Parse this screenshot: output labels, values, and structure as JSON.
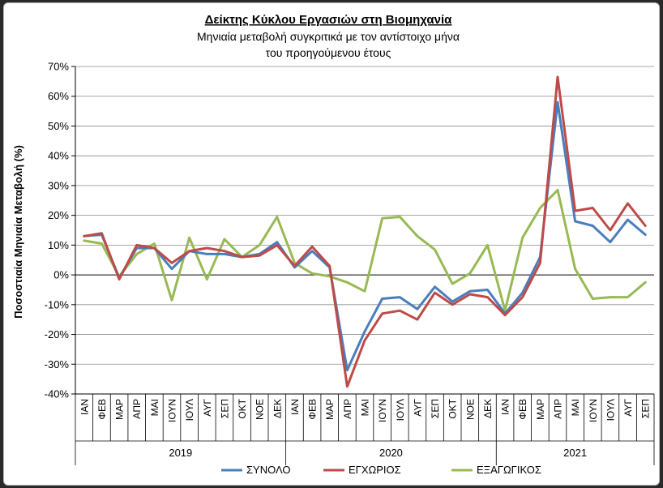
{
  "chart_data": {
    "type": "line",
    "title": "Δείκτης Κύκλου Εργασιών στη Βιομηχανία",
    "subtitle_line1": "Μηνιαία μεταβολή συγκριτικά με τον αντίστοιχο μήνα",
    "subtitle_line2": "του προηγούμενου έτους",
    "ylabel": "Ποσοστιαία Μηνιαία Μεταβολή (%)",
    "ylim": [
      -40,
      70
    ],
    "yticks": [
      "70%",
      "60%",
      "50%",
      "40%",
      "30%",
      "20%",
      "10%",
      "0%",
      "-10%",
      "-20%",
      "-30%",
      "-40%"
    ],
    "ytick_values": [
      70,
      60,
      50,
      40,
      30,
      20,
      10,
      0,
      -10,
      -20,
      -30,
      -40
    ],
    "categories": [
      "ΙΑΝ",
      "ΦΕΒ",
      "ΜΑΡ",
      "ΑΠΡ",
      "ΜΑΙ",
      "ΙΟΥΝ",
      "ΙΟΥΛ",
      "ΑΥΓ",
      "ΣΕΠ",
      "ΟΚΤ",
      "ΝΟΕ",
      "ΔΕΚ",
      "ΙΑΝ",
      "ΦΕΒ",
      "ΜΑΡ",
      "ΑΠΡ",
      "ΜΑΙ",
      "ΙΟΥΝ",
      "ΙΟΥΛ",
      "ΑΥΓ",
      "ΣΕΠ",
      "ΟΚΤ",
      "ΝΟΕ",
      "ΔΕΚ",
      "ΙΑΝ",
      "ΦΕΒ",
      "ΜΑΡ",
      "ΑΠΡ",
      "ΜΑΙ",
      "ΙΟΥΝ",
      "ΙΟΥΛ",
      "ΑΥΓ",
      "ΣΕΠ"
    ],
    "years": [
      {
        "label": "2019",
        "months": 12
      },
      {
        "label": "2020",
        "months": 12
      },
      {
        "label": "2021",
        "months": 9
      }
    ],
    "grid": true,
    "legend_position": "bottom",
    "series": [
      {
        "name": "ΣΥΝΟΛΟ",
        "color": "#4a7ebb",
        "values": [
          13,
          13.5,
          -1,
          9,
          9,
          2,
          8,
          7,
          7,
          6,
          7,
          11,
          2.5,
          8,
          2.5,
          -32,
          -19,
          -8,
          -7.5,
          -11.5,
          -4,
          -9,
          -5.5,
          -5,
          -13,
          -6,
          6,
          58,
          18,
          16.5,
          11,
          18.5,
          13.5
        ]
      },
      {
        "name": "ΕΓΧΩΡΙΟΣ",
        "color": "#be4b48",
        "values": [
          13,
          14,
          -1.5,
          10,
          9,
          4,
          8,
          9,
          8,
          6,
          6.5,
          10,
          3,
          9.5,
          3,
          -37.5,
          -22,
          -13,
          -12,
          -15,
          -6,
          -10,
          -6.5,
          -7.5,
          -13.5,
          -7.5,
          4,
          66.5,
          21.5,
          22.5,
          15,
          24,
          16.5
        ]
      },
      {
        "name": "ΕΞΑΓΩΓΙΚΟΣ",
        "color": "#98b954",
        "values": [
          11.5,
          10.5,
          -0.5,
          7,
          10.5,
          -8.5,
          12.5,
          -1.5,
          12,
          6,
          10,
          19.5,
          4,
          0.5,
          -0.5,
          -2.5,
          -5.5,
          19,
          19.5,
          13,
          8.5,
          -3,
          0.5,
          10,
          -12,
          12.5,
          22.5,
          28.5,
          2,
          -8,
          -7.5,
          -7.5,
          -2.5
        ]
      }
    ]
  }
}
